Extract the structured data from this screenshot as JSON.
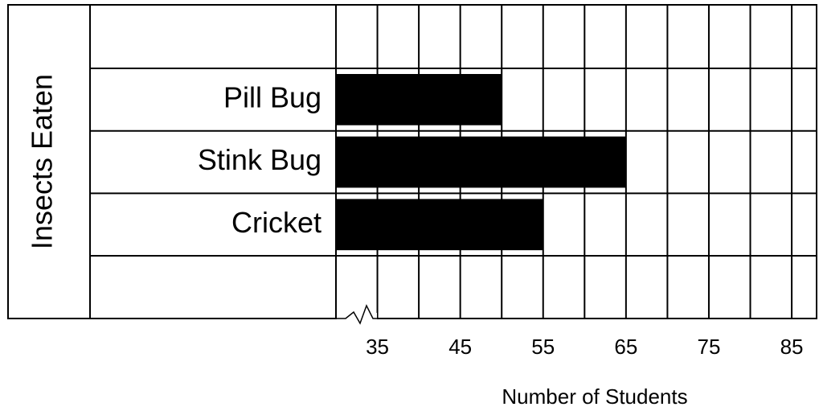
{
  "chart_data": {
    "type": "barh",
    "ylabel": "Insects Eaten",
    "xlabel": "Number of Students",
    "categories": [
      "Pill Bug",
      "Stink Bug",
      "Cricket"
    ],
    "values": [
      50,
      65,
      55
    ],
    "color": "#000000",
    "xlim": [
      30,
      88
    ],
    "xticks": [
      35,
      45,
      55,
      65,
      75,
      85
    ],
    "minor_xticks": [
      30,
      40,
      50,
      60,
      70,
      80
    ],
    "grid": true,
    "axis_break": true
  }
}
